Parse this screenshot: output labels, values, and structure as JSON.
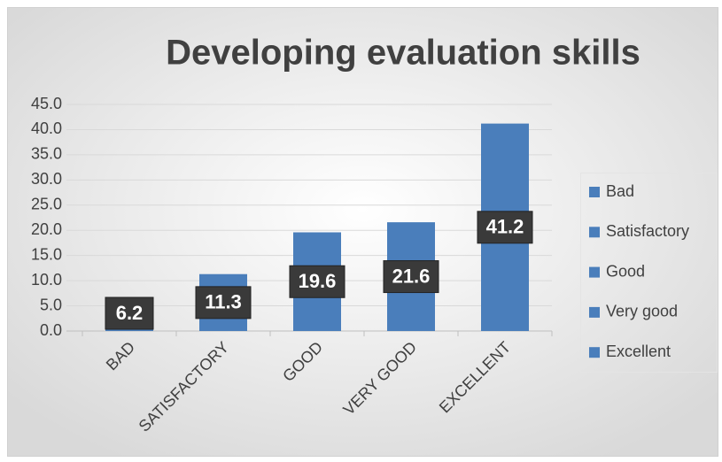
{
  "chart_data": {
    "type": "bar",
    "title": "Developing evaluation skills",
    "categories": [
      "BAD",
      "SATISFACTORY",
      "GOOD",
      "VERY GOOD",
      "EXCELLENT"
    ],
    "values": [
      6.2,
      11.3,
      19.6,
      21.6,
      41.2
    ],
    "color": "#4a7ebb",
    "ylim": [
      0,
      45
    ],
    "yticks": [
      {
        "value": 0,
        "label": "0.0"
      },
      {
        "value": 5,
        "label": "5.0"
      },
      {
        "value": 10,
        "label": "10.0"
      },
      {
        "value": 15,
        "label": "15.0"
      },
      {
        "value": 20,
        "label": "20.0"
      },
      {
        "value": 25,
        "label": "25.0"
      },
      {
        "value": 30,
        "label": "30.0"
      },
      {
        "value": 35,
        "label": "35.0"
      },
      {
        "value": 40,
        "label": "40.0"
      },
      {
        "value": 45,
        "label": "45.0"
      }
    ],
    "grid": true,
    "legend": [
      "Bad",
      "Satisfactory",
      "Good",
      "Very good",
      "Excellent"
    ],
    "legend_position": "right"
  }
}
